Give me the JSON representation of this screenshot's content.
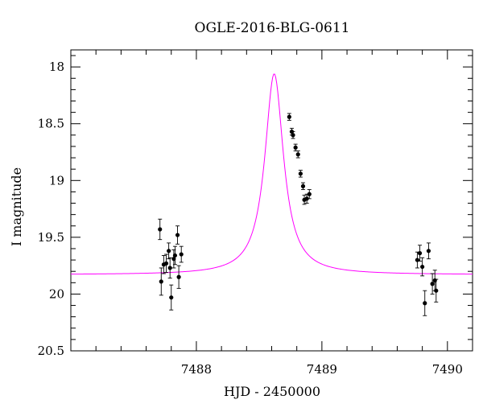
{
  "chart_data": {
    "type": "scatter",
    "title": "OGLE-2016-BLG-0611",
    "xlabel": "HJD - 2450000",
    "ylabel": "I magnitude",
    "xlim": [
      7487.0,
      7490.2
    ],
    "ylim": [
      20.5,
      17.85
    ],
    "y_inverted": true,
    "x_ticks": [
      7488,
      7489,
      7490
    ],
    "y_ticks": [
      18,
      18.5,
      19,
      19.5,
      20,
      20.5
    ],
    "y_tick_labels": [
      "18",
      "18.5",
      "19",
      "19.5",
      "20",
      "20.5"
    ],
    "grid": false,
    "colors": {
      "data": "#000000",
      "model": "#ff00ff"
    },
    "model": {
      "name": "",
      "t_peak": 7488.62,
      "base_mag": 19.83,
      "peak_mag": 18.06,
      "width_days": 0.09
    },
    "points": [
      {
        "x": 7487.71,
        "y": 19.43,
        "err": 0.09
      },
      {
        "x": 7487.72,
        "y": 19.89,
        "err": 0.12
      },
      {
        "x": 7487.74,
        "y": 19.74,
        "err": 0.08
      },
      {
        "x": 7487.76,
        "y": 19.73,
        "err": 0.08
      },
      {
        "x": 7487.78,
        "y": 19.62,
        "err": 0.07
      },
      {
        "x": 7487.79,
        "y": 19.77,
        "err": 0.09
      },
      {
        "x": 7487.8,
        "y": 20.03,
        "err": 0.11
      },
      {
        "x": 7487.82,
        "y": 19.69,
        "err": 0.08
      },
      {
        "x": 7487.83,
        "y": 19.66,
        "err": 0.08
      },
      {
        "x": 7487.85,
        "y": 19.48,
        "err": 0.08
      },
      {
        "x": 7487.86,
        "y": 19.85,
        "err": 0.1
      },
      {
        "x": 7487.88,
        "y": 19.65,
        "err": 0.07
      },
      {
        "x": 7488.74,
        "y": 18.44,
        "err": 0.03
      },
      {
        "x": 7488.76,
        "y": 18.57,
        "err": 0.03
      },
      {
        "x": 7488.77,
        "y": 18.6,
        "err": 0.03
      },
      {
        "x": 7488.79,
        "y": 18.71,
        "err": 0.03
      },
      {
        "x": 7488.81,
        "y": 18.77,
        "err": 0.03
      },
      {
        "x": 7488.83,
        "y": 18.94,
        "err": 0.03
      },
      {
        "x": 7488.85,
        "y": 19.05,
        "err": 0.03
      },
      {
        "x": 7488.86,
        "y": 19.17,
        "err": 0.04
      },
      {
        "x": 7488.88,
        "y": 19.16,
        "err": 0.04
      },
      {
        "x": 7488.9,
        "y": 19.12,
        "err": 0.04
      },
      {
        "x": 7489.76,
        "y": 19.7,
        "err": 0.07
      },
      {
        "x": 7489.78,
        "y": 19.64,
        "err": 0.07
      },
      {
        "x": 7489.8,
        "y": 19.76,
        "err": 0.08
      },
      {
        "x": 7489.82,
        "y": 20.08,
        "err": 0.11
      },
      {
        "x": 7489.85,
        "y": 19.62,
        "err": 0.07
      },
      {
        "x": 7489.88,
        "y": 19.91,
        "err": 0.09
      },
      {
        "x": 7489.9,
        "y": 19.88,
        "err": 0.09
      },
      {
        "x": 7489.91,
        "y": 19.97,
        "err": 0.1
      }
    ]
  }
}
